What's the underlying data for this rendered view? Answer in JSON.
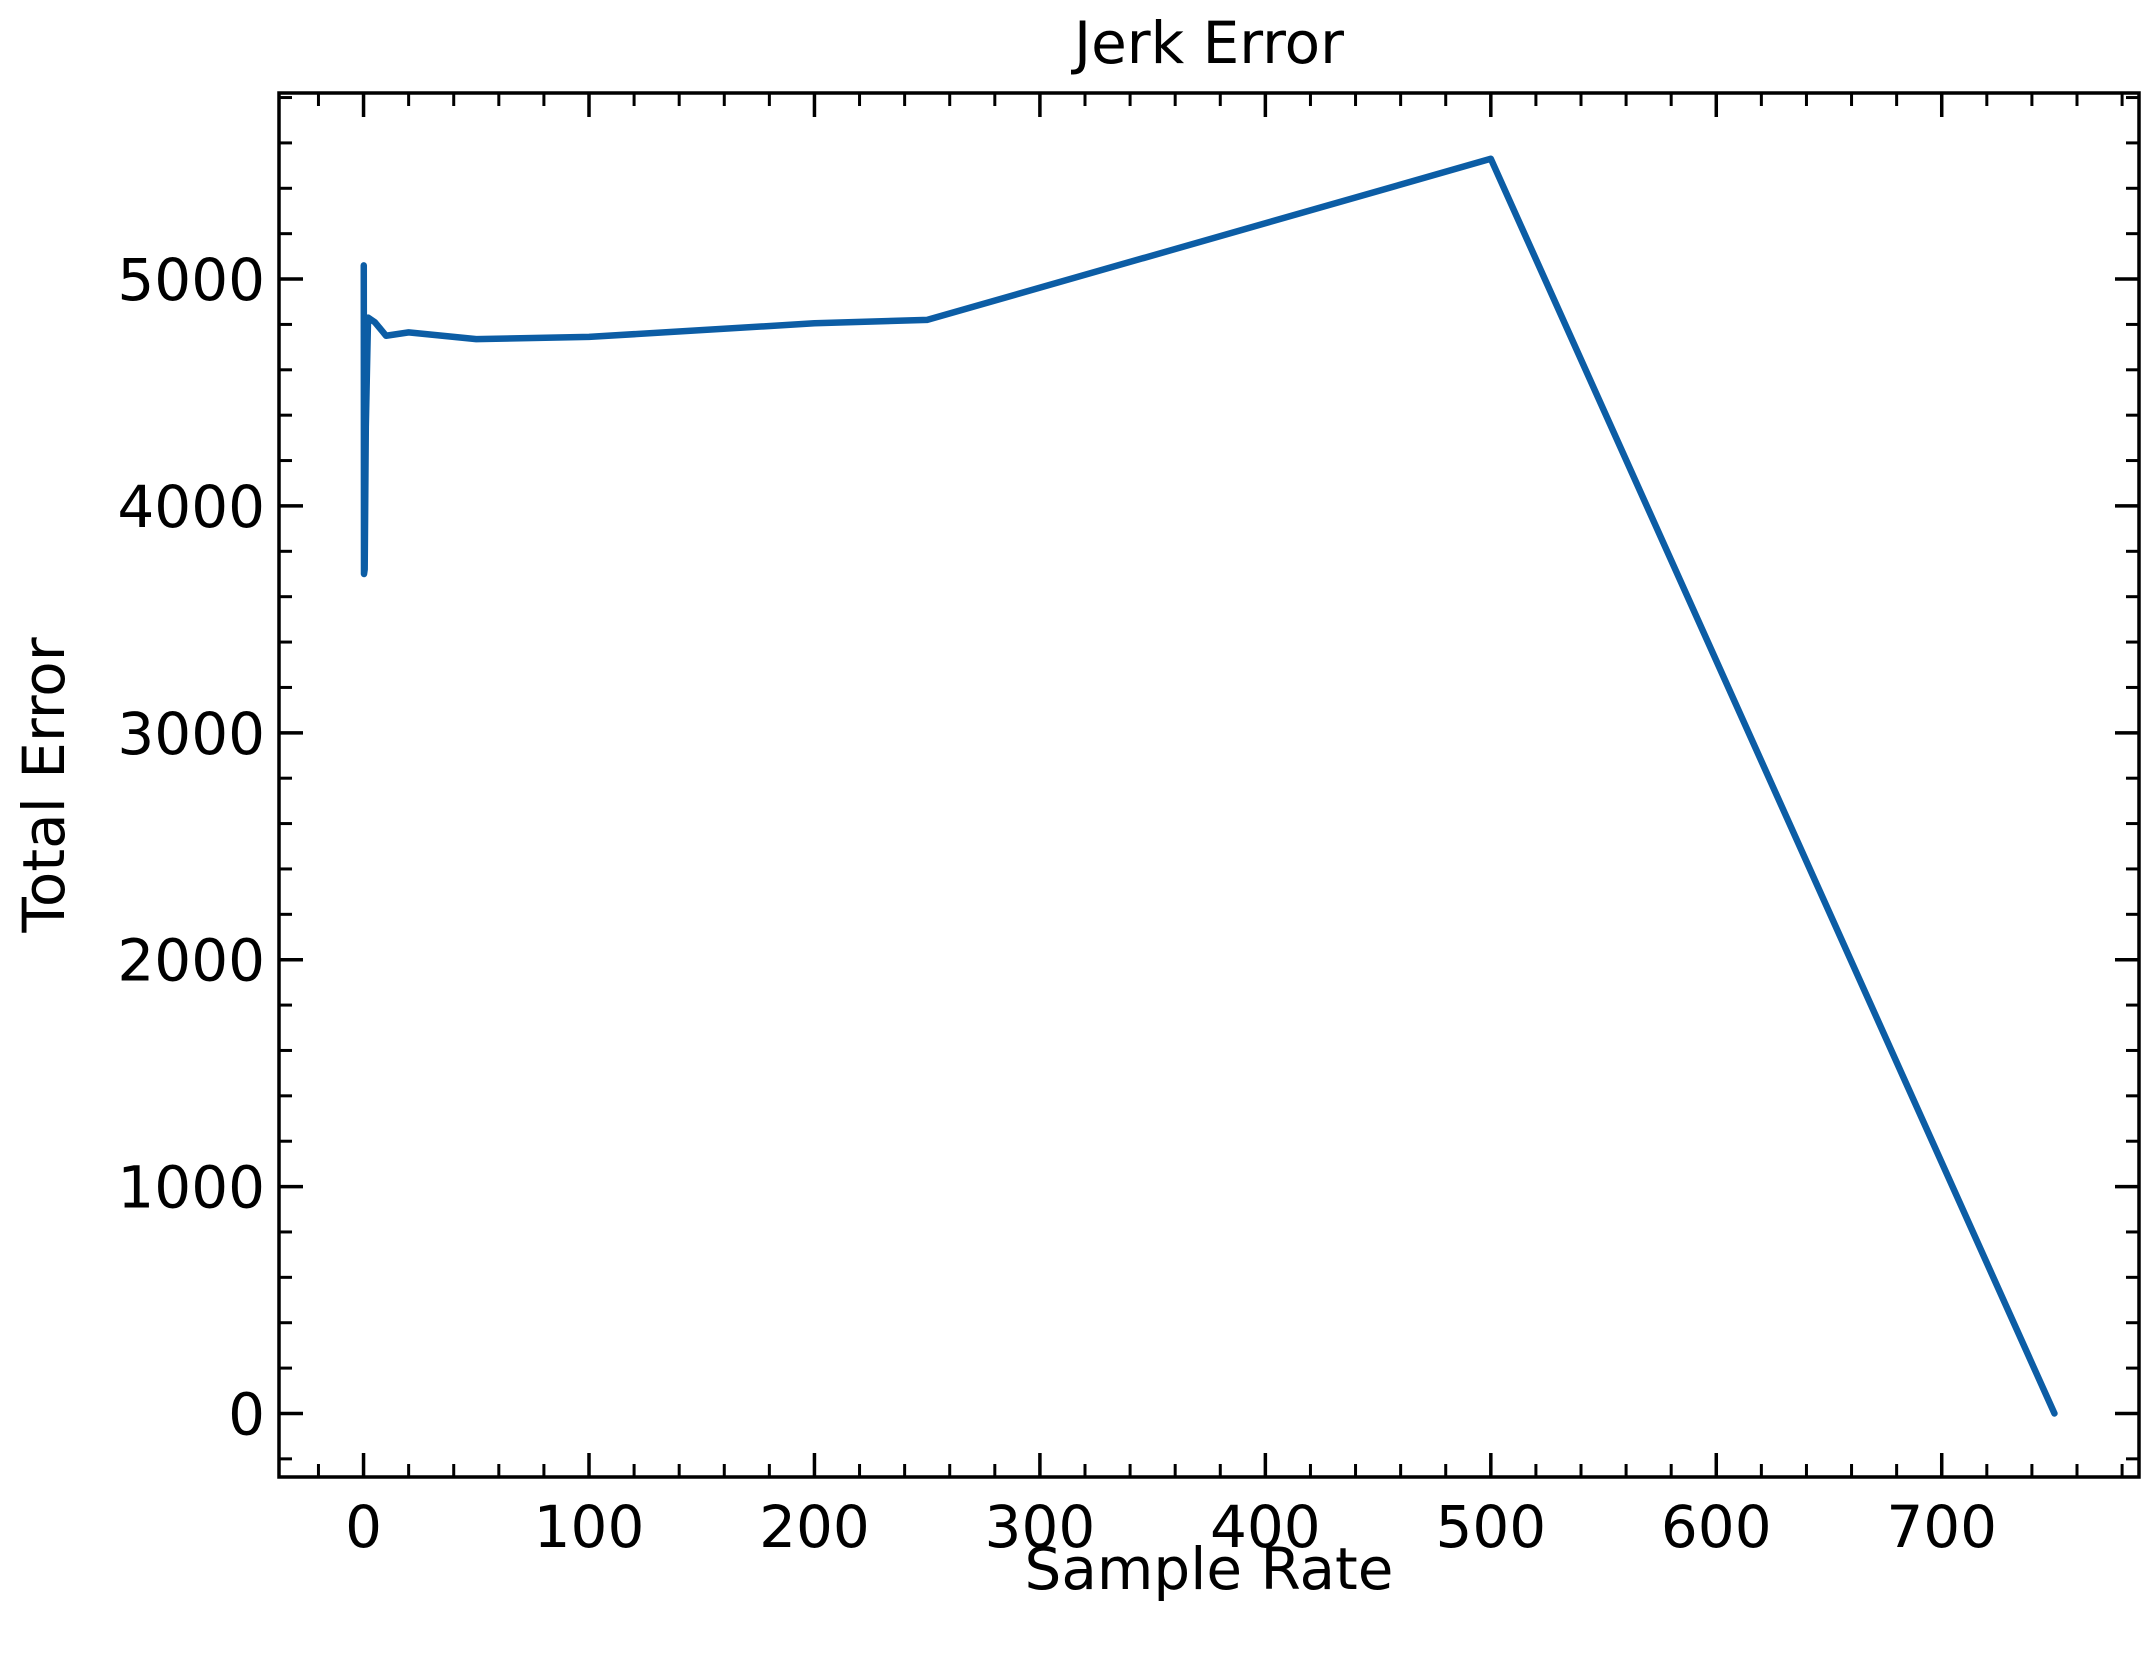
{
  "chart_data": {
    "type": "line",
    "title": "Jerk Error",
    "xlabel": "Sample Rate",
    "ylabel": "Total Error",
    "xlim": [
      -37.5,
      787.5
    ],
    "ylim": [
      -280,
      5820
    ],
    "xticks": [
      0,
      100,
      200,
      300,
      400,
      500,
      600,
      700
    ],
    "yticks": [
      0,
      1000,
      2000,
      3000,
      4000,
      5000
    ],
    "xtick_labels": [
      "0",
      "100",
      "200",
      "300",
      "400",
      "500",
      "600",
      "700"
    ],
    "ytick_labels": [
      "0",
      "1000",
      "2000",
      "3000",
      "4000",
      "5000"
    ],
    "x_minor_step": 20,
    "y_minor_step": 200,
    "grid": false,
    "series": [
      {
        "color": "#0C5DA5",
        "x": [
          0.1,
          0.2,
          0.5,
          1,
          2,
          5,
          10,
          20,
          50,
          100,
          200,
          250,
          500,
          750
        ],
        "y": [
          5060,
          3700,
          3720,
          4350,
          4830,
          4810,
          4750,
          4765,
          4735,
          4745,
          4805,
          4820,
          5530,
          0
        ]
      }
    ]
  }
}
